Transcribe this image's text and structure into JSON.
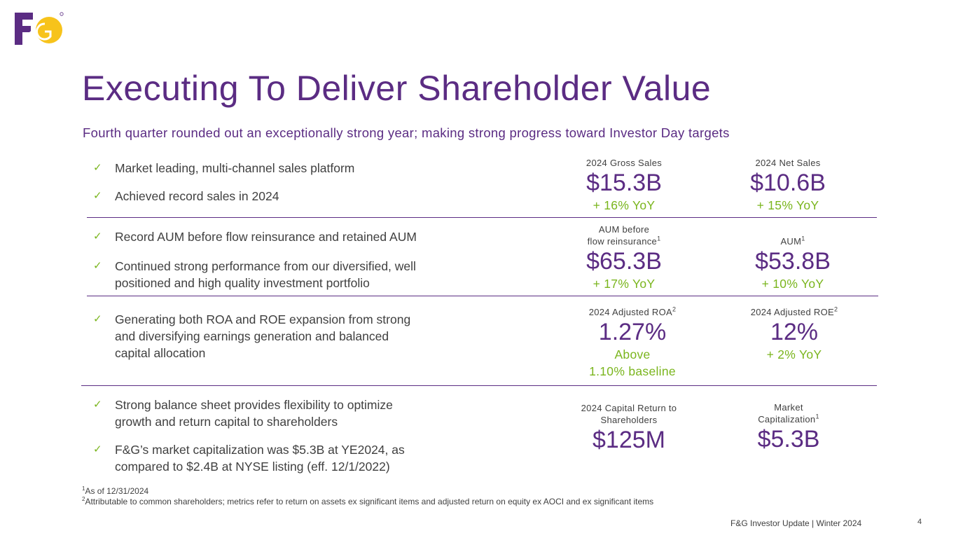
{
  "logo": {
    "text": "F&G",
    "purple": "#5b2c83",
    "yellow": "#f7c31b"
  },
  "title": "Executing To Deliver Shareholder Value",
  "subtitle": "Fourth quarter rounded out an exceptionally strong year; making strong progress toward Investor Day targets",
  "bullets": [
    {
      "text": "Market leading, multi-channel sales platform"
    },
    {
      "text": "Achieved record sales in 2024"
    },
    {
      "text": "Record AUM before flow reinsurance and retained AUM"
    },
    {
      "line1": "Continued strong performance from our diversified, well",
      "line2": "positioned and high quality investment portfolio"
    },
    {
      "line1": "Generating both ROA and ROE expansion from strong",
      "line2": "and diversifying earnings generation and balanced",
      "line3": "capital allocation"
    },
    {
      "line1": "Strong balance sheet provides flexibility to optimize",
      "line2": "growth and return capital to shareholders"
    },
    {
      "line1": "F&G’s market capitalization was $5.3B at YE2024, as",
      "line2": "compared to $2.4B at NYSE listing (eff. 12/1/2022)"
    }
  ],
  "check_icon": "check-icon",
  "metrics": {
    "gross_sales": {
      "label": "2024 Gross Sales",
      "value": "$15.3B",
      "change": "+ 16% YoY"
    },
    "net_sales": {
      "label": "2024 Net Sales",
      "value": "$10.6B",
      "change": "+ 15% YoY"
    },
    "aum_before": {
      "label1": "AUM before",
      "label2": "flow reinsurance",
      "sup": "1",
      "value": "$65.3B",
      "change": "+ 17% YoY"
    },
    "aum": {
      "label": "AUM",
      "sup": "1",
      "value": "$53.8B",
      "change": "+ 10% YoY"
    },
    "roa": {
      "label": "2024 Adjusted ROA",
      "sup": "2",
      "value": "1.27%",
      "change1": "Above",
      "change2": "1.10% baseline"
    },
    "roe": {
      "label": "2024 Adjusted ROE",
      "sup": "2",
      "value": "12%",
      "change": "+ 2% YoY"
    },
    "capital_return": {
      "label1": "2024 Capital Return to",
      "label2": "Shareholders",
      "value": "$125M"
    },
    "market_cap": {
      "label1": "Market",
      "label2": "Capitalization",
      "sup": "1",
      "value": "$5.3B"
    }
  },
  "footnotes": {
    "note1_num": "1",
    "note1": "As of 12/31/2024",
    "note2_num": "2",
    "note2": "Attributable to common shareholders; metrics refer to return on assets ex significant items and adjusted return on equity ex AOCI and ex significant items"
  },
  "footer": {
    "text": "F&G Investor Update | Winter 2024",
    "page": "4"
  },
  "colors": {
    "purple": "#5b2c83",
    "green": "#7ab51d",
    "text": "#404040"
  }
}
